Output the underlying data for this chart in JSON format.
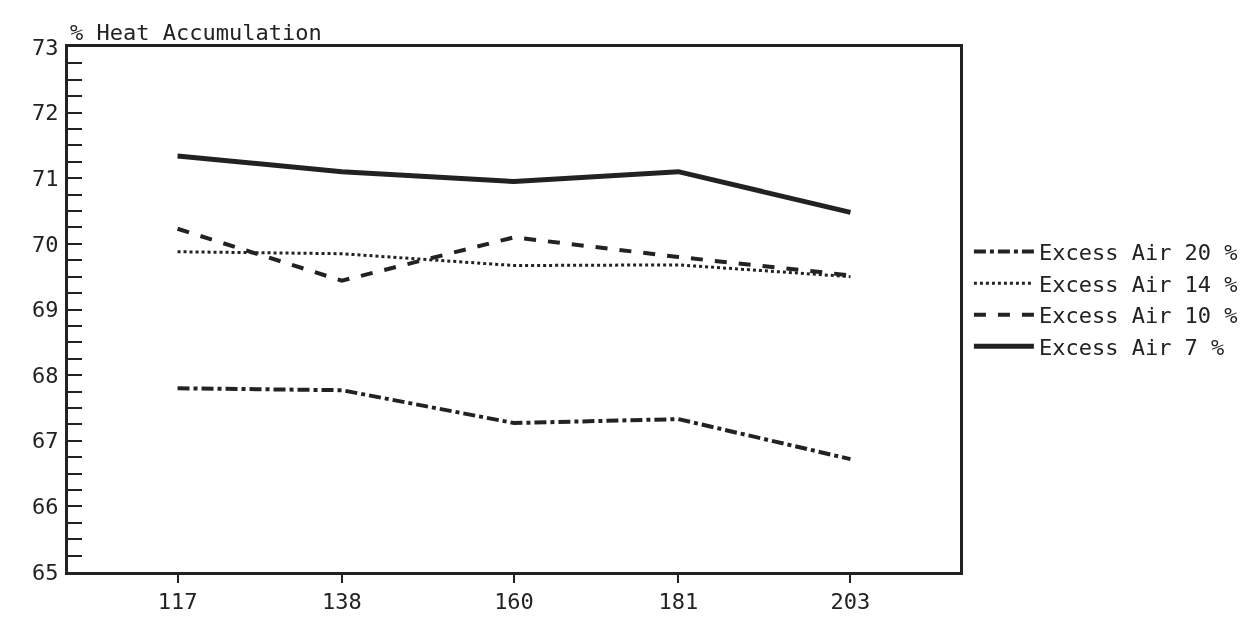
{
  "chart_data": {
    "type": "line",
    "ylabel": "% Heat Accumulation",
    "x": [
      117,
      138,
      160,
      181,
      203
    ],
    "xlim": [
      103,
      217
    ],
    "xticks": [
      117,
      138,
      160,
      181,
      203
    ],
    "ylim": [
      65,
      73
    ],
    "yticks": [
      65,
      {
        "value": 65.25,
        "label": null
      },
      {
        "value": 65.5,
        "label": null
      },
      {
        "value": 65.75,
        "label": null
      },
      66,
      {
        "value": 66.25,
        "label": null
      },
      {
        "value": 66.5,
        "label": null
      },
      {
        "value": 66.75,
        "label": null
      },
      67,
      {
        "value": 67.25,
        "label": null
      },
      {
        "value": 67.5,
        "label": null
      },
      {
        "value": 67.75,
        "label": null
      },
      68,
      {
        "value": 68.25,
        "label": null
      },
      {
        "value": 68.5,
        "label": null
      },
      {
        "value": 68.75,
        "label": null
      },
      69,
      {
        "value": 69.25,
        "label": null
      },
      {
        "value": 69.5,
        "label": null
      },
      {
        "value": 69.75,
        "label": null
      },
      70,
      {
        "value": 70.25,
        "label": null
      },
      {
        "value": 70.5,
        "label": null
      },
      {
        "value": 70.75,
        "label": null
      },
      71,
      {
        "value": 71.25,
        "label": null
      },
      {
        "value": 71.5,
        "label": null
      },
      {
        "value": 71.75,
        "label": null
      },
      72,
      {
        "value": 72.25,
        "label": null
      },
      {
        "value": 72.5,
        "label": null
      },
      {
        "value": 72.75,
        "label": null
      },
      73
    ],
    "series": [
      {
        "name": "Excess Air 20 %",
        "color": "#222222",
        "line_style": "dashdot",
        "values": [
          67.8,
          67.77,
          67.27,
          67.33,
          66.72
        ]
      },
      {
        "name": "Excess Air 14 %",
        "color": "#222222",
        "line_style": "dotted",
        "values": [
          69.88,
          69.85,
          69.67,
          69.68,
          69.5
        ]
      },
      {
        "name": "Excess Air 10 %",
        "color": "#222222",
        "line_style": "dashed",
        "values": [
          70.23,
          69.44,
          70.1,
          69.8,
          69.52
        ]
      },
      {
        "name": "Excess Air 7 %",
        "color": "#222222",
        "line_style": "solid",
        "values": [
          71.34,
          71.1,
          70.95,
          71.1,
          70.48
        ]
      }
    ],
    "grid": false,
    "legend": "right",
    "marker": "none"
  }
}
